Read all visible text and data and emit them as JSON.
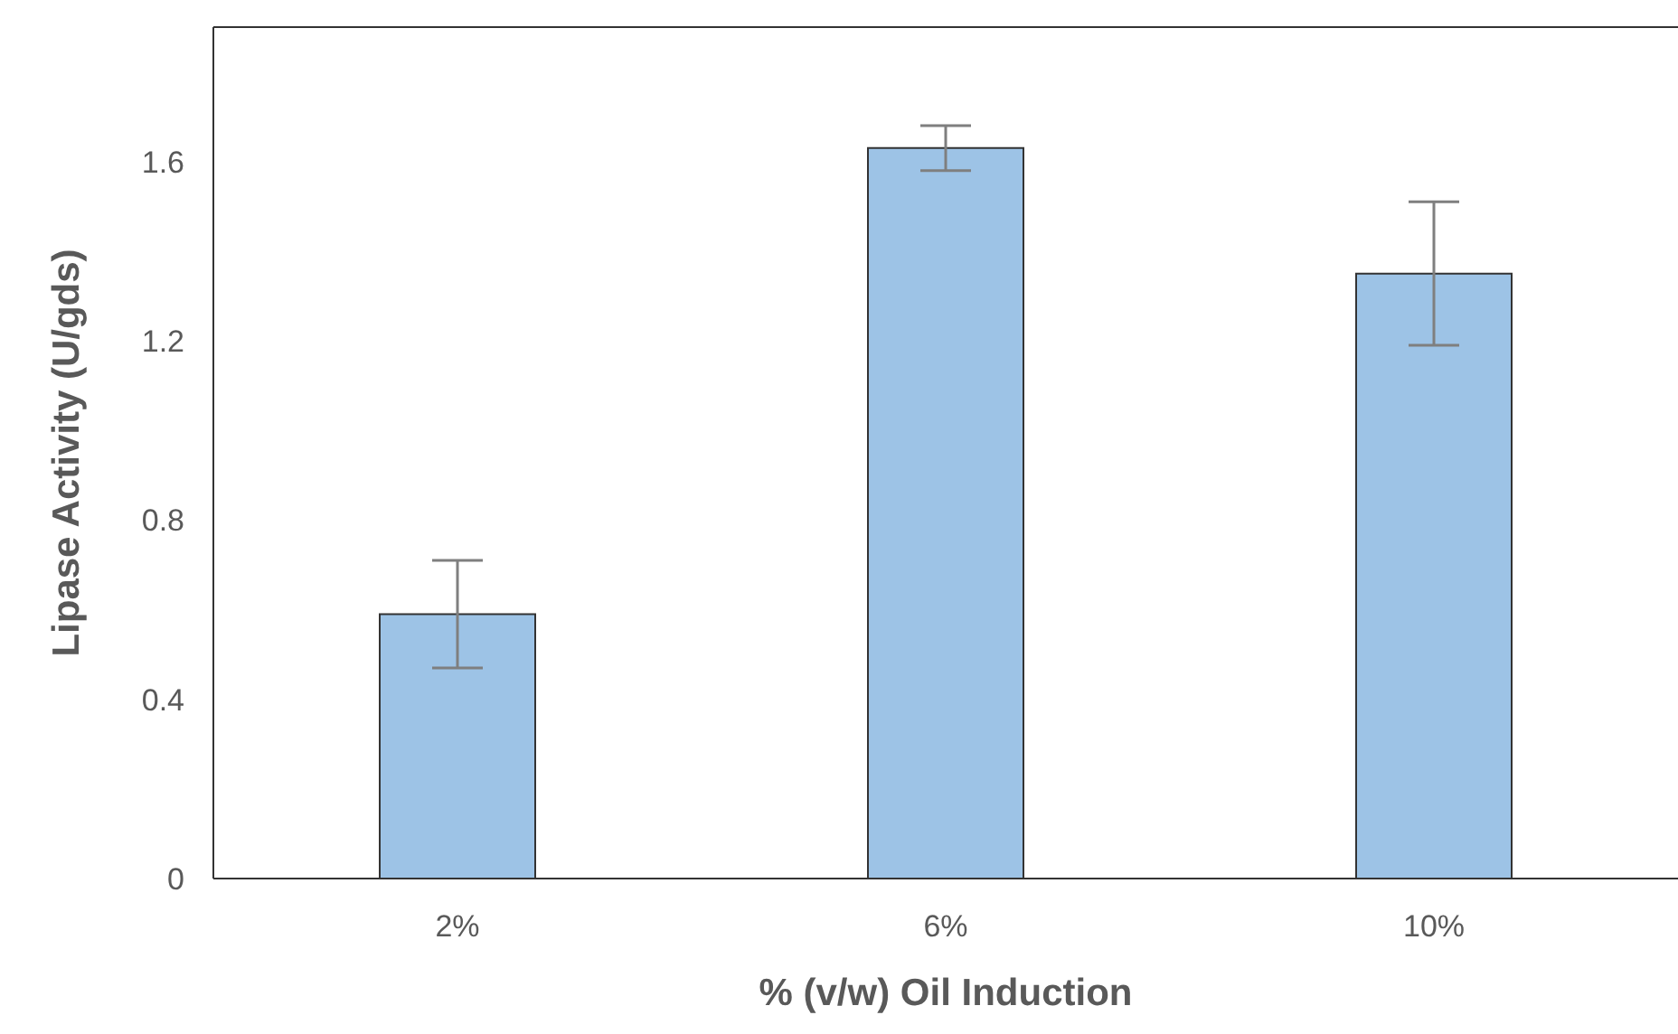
{
  "chart_data": {
    "type": "bar",
    "xlabel": "% (v/w) Oil Induction",
    "ylabel": "Lipase Activity (U/gds)",
    "categories": [
      "2%",
      "6%",
      "10%"
    ],
    "values": [
      0.59,
      1.63,
      1.35
    ],
    "errors": [
      0.12,
      0.05,
      0.16
    ],
    "color": "#9dc3e6",
    "ylim": [
      0,
      1.9
    ],
    "yticks": [
      0,
      0.4,
      0.8,
      1.2,
      1.6
    ],
    "grid": false,
    "legend": false
  }
}
